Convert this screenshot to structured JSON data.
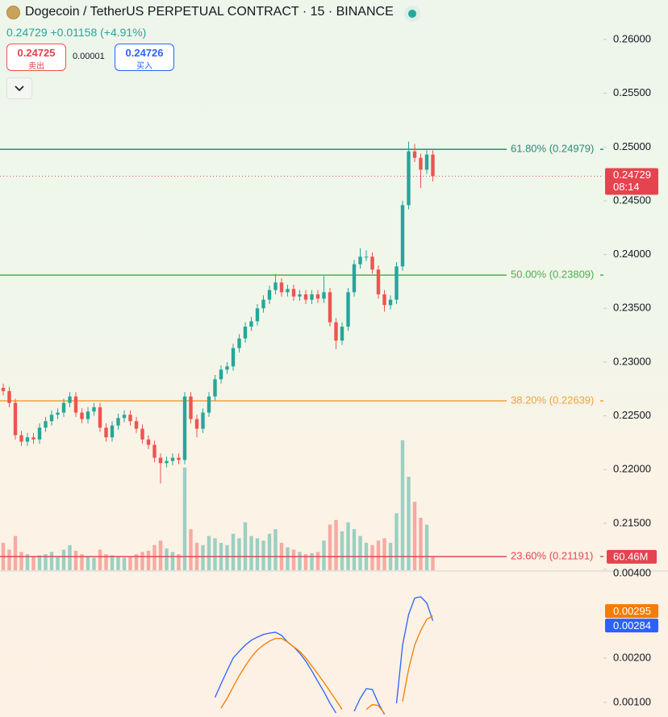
{
  "header": {
    "title": "Dogecoin / TetherUS PERPETUAL CONTRACT · 15 · BINANCE",
    "change": "+0.01158 (+4.91%)",
    "sell": {
      "price": "0.24725",
      "label": "卖出"
    },
    "spread": "0.00001",
    "buy": {
      "price": "0.24726",
      "label": "买入"
    }
  },
  "chart_data": [
    {
      "type": "candlestick",
      "ylim": [
        0.21064,
        0.26368
      ],
      "yticks": [
        {
          "value": 0.26,
          "label": "0.26000"
        },
        {
          "value": 0.255,
          "label": "0.25500"
        },
        {
          "value": 0.25,
          "label": "0.25000"
        },
        {
          "value": 0.245,
          "label": "0.24500"
        },
        {
          "value": 0.24,
          "label": "0.24000"
        },
        {
          "value": 0.235,
          "label": "0.23500"
        },
        {
          "value": 0.23,
          "label": "0.23000"
        },
        {
          "value": 0.225,
          "label": "0.22500"
        },
        {
          "value": 0.22,
          "label": "0.22000"
        },
        {
          "value": 0.215,
          "label": "0.21500"
        }
      ],
      "open": [
        0.2276,
        0.2273,
        0.2262,
        0.2232,
        0.2226,
        0.223,
        0.2228,
        0.2239,
        0.2245,
        0.2251,
        0.2253,
        0.2262,
        0.2268,
        0.2253,
        0.2247,
        0.2254,
        0.2258,
        0.2239,
        0.223,
        0.2241,
        0.2248,
        0.2251,
        0.2245,
        0.2238,
        0.2228,
        0.2223,
        0.2211,
        0.2206,
        0.2208,
        0.2211,
        0.2209,
        0.2268,
        0.2247,
        0.2238,
        0.2253,
        0.2268,
        0.2284,
        0.2293,
        0.2296,
        0.2313,
        0.2322,
        0.2333,
        0.2338,
        0.235,
        0.2358,
        0.2367,
        0.2374,
        0.2365,
        0.2368,
        0.2361,
        0.2363,
        0.2358,
        0.2363,
        0.2359,
        0.2365,
        0.2337,
        0.232,
        0.2333,
        0.2365,
        0.2391,
        0.2398,
        0.2398,
        0.2386,
        0.2363,
        0.2353,
        0.2358,
        0.2389,
        0.2446,
        0.2496,
        0.249,
        0.2479,
        0.2493
      ],
      "high": [
        0.228,
        0.2277,
        0.2266,
        0.2236,
        0.2234,
        0.2234,
        0.2243,
        0.2249,
        0.2255,
        0.2257,
        0.2266,
        0.2272,
        0.2272,
        0.2257,
        0.2258,
        0.2262,
        0.2262,
        0.2243,
        0.2245,
        0.2252,
        0.2255,
        0.2255,
        0.2249,
        0.2242,
        0.2232,
        0.2227,
        0.2215,
        0.2212,
        0.2215,
        0.2215,
        0.2272,
        0.2272,
        0.2251,
        0.2257,
        0.2272,
        0.2288,
        0.2297,
        0.23,
        0.2317,
        0.2326,
        0.2337,
        0.2342,
        0.2354,
        0.2362,
        0.2371,
        0.2382,
        0.2378,
        0.2372,
        0.2372,
        0.2367,
        0.2367,
        0.2367,
        0.2367,
        0.238,
        0.2369,
        0.2341,
        0.2337,
        0.2369,
        0.2395,
        0.2406,
        0.2404,
        0.2402,
        0.239,
        0.2367,
        0.2362,
        0.2393,
        0.245,
        0.2505,
        0.2503,
        0.2494,
        0.2497,
        0.2497
      ],
      "low": [
        0.2269,
        0.2258,
        0.2228,
        0.2222,
        0.2222,
        0.2224,
        0.2224,
        0.2235,
        0.2241,
        0.2247,
        0.2249,
        0.2258,
        0.2249,
        0.2243,
        0.2243,
        0.225,
        0.2235,
        0.2226,
        0.2226,
        0.2237,
        0.2244,
        0.2241,
        0.2234,
        0.2224,
        0.2219,
        0.2207,
        0.2187,
        0.2202,
        0.2204,
        0.2205,
        0.2205,
        0.2243,
        0.223,
        0.2234,
        0.2249,
        0.2264,
        0.228,
        0.2289,
        0.2292,
        0.2309,
        0.2318,
        0.2329,
        0.2334,
        0.2346,
        0.2354,
        0.2363,
        0.2361,
        0.2361,
        0.2357,
        0.2357,
        0.2354,
        0.2354,
        0.2355,
        0.2355,
        0.2333,
        0.2312,
        0.2316,
        0.2329,
        0.2361,
        0.2387,
        0.2394,
        0.2382,
        0.2359,
        0.2347,
        0.2349,
        0.2354,
        0.2385,
        0.2442,
        0.2486,
        0.2462,
        0.2475,
        0.2468
      ],
      "close": [
        0.2273,
        0.2262,
        0.2232,
        0.2226,
        0.223,
        0.2228,
        0.2239,
        0.2245,
        0.2251,
        0.2253,
        0.2262,
        0.2268,
        0.2253,
        0.2247,
        0.2254,
        0.2258,
        0.2239,
        0.223,
        0.2241,
        0.2248,
        0.2251,
        0.2245,
        0.2238,
        0.2228,
        0.2223,
        0.2211,
        0.2206,
        0.2208,
        0.2211,
        0.2209,
        0.2268,
        0.2247,
        0.2238,
        0.2253,
        0.2268,
        0.2284,
        0.2293,
        0.2296,
        0.2313,
        0.2322,
        0.2333,
        0.2338,
        0.235,
        0.2358,
        0.2367,
        0.2374,
        0.2365,
        0.2368,
        0.2361,
        0.2363,
        0.2358,
        0.2363,
        0.2359,
        0.2365,
        0.2337,
        0.232,
        0.2333,
        0.2365,
        0.2391,
        0.2398,
        0.2398,
        0.2386,
        0.2363,
        0.2353,
        0.2358,
        0.2389,
        0.2446,
        0.2496,
        0.249,
        0.2479,
        0.2493,
        0.24729
      ],
      "up_color": "#26a69a",
      "down_color": "#ef5350",
      "volume": [
        120,
        90,
        150,
        80,
        70,
        60,
        65,
        70,
        80,
        60,
        90,
        110,
        85,
        70,
        60,
        55,
        90,
        70,
        65,
        60,
        55,
        60,
        70,
        80,
        85,
        110,
        130,
        95,
        80,
        70,
        450,
        180,
        120,
        110,
        150,
        140,
        120,
        110,
        160,
        140,
        210,
        150,
        140,
        130,
        160,
        180,
        120,
        100,
        90,
        80,
        70,
        75,
        80,
        130,
        200,
        220,
        170,
        210,
        180,
        150,
        120,
        110,
        130,
        140,
        120,
        250,
        570,
        410,
        300,
        230,
        200,
        60.46
      ],
      "volume_lim": [
        0,
        2500
      ],
      "volume_label": "60.46M",
      "countdown": "08:14",
      "levels": [
        {
          "value": 0.24979,
          "label": "61.80% (0.24979)",
          "color": "#2a8a7c"
        },
        {
          "value": 0.23809,
          "label": "50.00% (0.23809)",
          "color": "#4caf50"
        },
        {
          "value": 0.22639,
          "label": "38.20% (0.22639)",
          "color": "#f0a23a"
        },
        {
          "value": 0.21191,
          "label": "23.60% (0.21191)",
          "color": "#e0485a"
        }
      ]
    },
    {
      "type": "line",
      "ylim": [
        0.00067,
        0.00396
      ],
      "yticks": [
        {
          "value": 0.004,
          "label": "0.00400"
        },
        {
          "value": 0.002,
          "label": "0.00200"
        },
        {
          "value": 0.001,
          "label": "0.00100"
        }
      ],
      "series": [
        {
          "color": "#2962ff",
          "values": [
            null,
            null,
            null,
            null,
            null,
            null,
            null,
            null,
            null,
            null,
            null,
            null,
            null,
            null,
            null,
            null,
            null,
            null,
            null,
            null,
            null,
            null,
            null,
            null,
            null,
            null,
            null,
            null,
            null,
            null,
            null,
            null,
            null,
            null,
            null,
            0.00111,
            0.00142,
            0.00171,
            0.002,
            0.00215,
            0.00229,
            0.0024,
            0.00247,
            0.00253,
            0.00256,
            0.00258,
            0.00251,
            0.00236,
            0.00225,
            0.00211,
            0.00193,
            0.00171,
            0.00147,
            0.00124,
            0.00098,
            0.00076,
            null,
            null,
            0.0008,
            0.00109,
            0.00131,
            0.00129,
            0.00098,
            0.00073,
            null,
            0.00098,
            0.00229,
            0.00298,
            0.00335,
            0.00338,
            0.00324,
            0.00284
          ]
        },
        {
          "color": "#f57c00",
          "values": [
            null,
            null,
            null,
            null,
            null,
            null,
            null,
            null,
            null,
            null,
            null,
            null,
            null,
            null,
            null,
            null,
            null,
            null,
            null,
            null,
            null,
            null,
            null,
            null,
            null,
            null,
            null,
            null,
            null,
            null,
            null,
            null,
            null,
            null,
            null,
            null,
            0.00087,
            0.00109,
            0.00135,
            0.0016,
            0.00182,
            0.00202,
            0.00218,
            0.00229,
            0.00238,
            0.00244,
            0.00244,
            0.00236,
            0.00225,
            0.00215,
            0.002,
            0.00182,
            0.00164,
            0.00145,
            0.00125,
            0.00105,
            0.00084,
            null,
            null,
            null,
            0.00084,
            0.00095,
            0.00093,
            0.00075,
            null,
            null,
            0.00102,
            0.00175,
            0.00229,
            0.00262,
            0.00287,
            0.00295
          ]
        }
      ]
    }
  ]
}
